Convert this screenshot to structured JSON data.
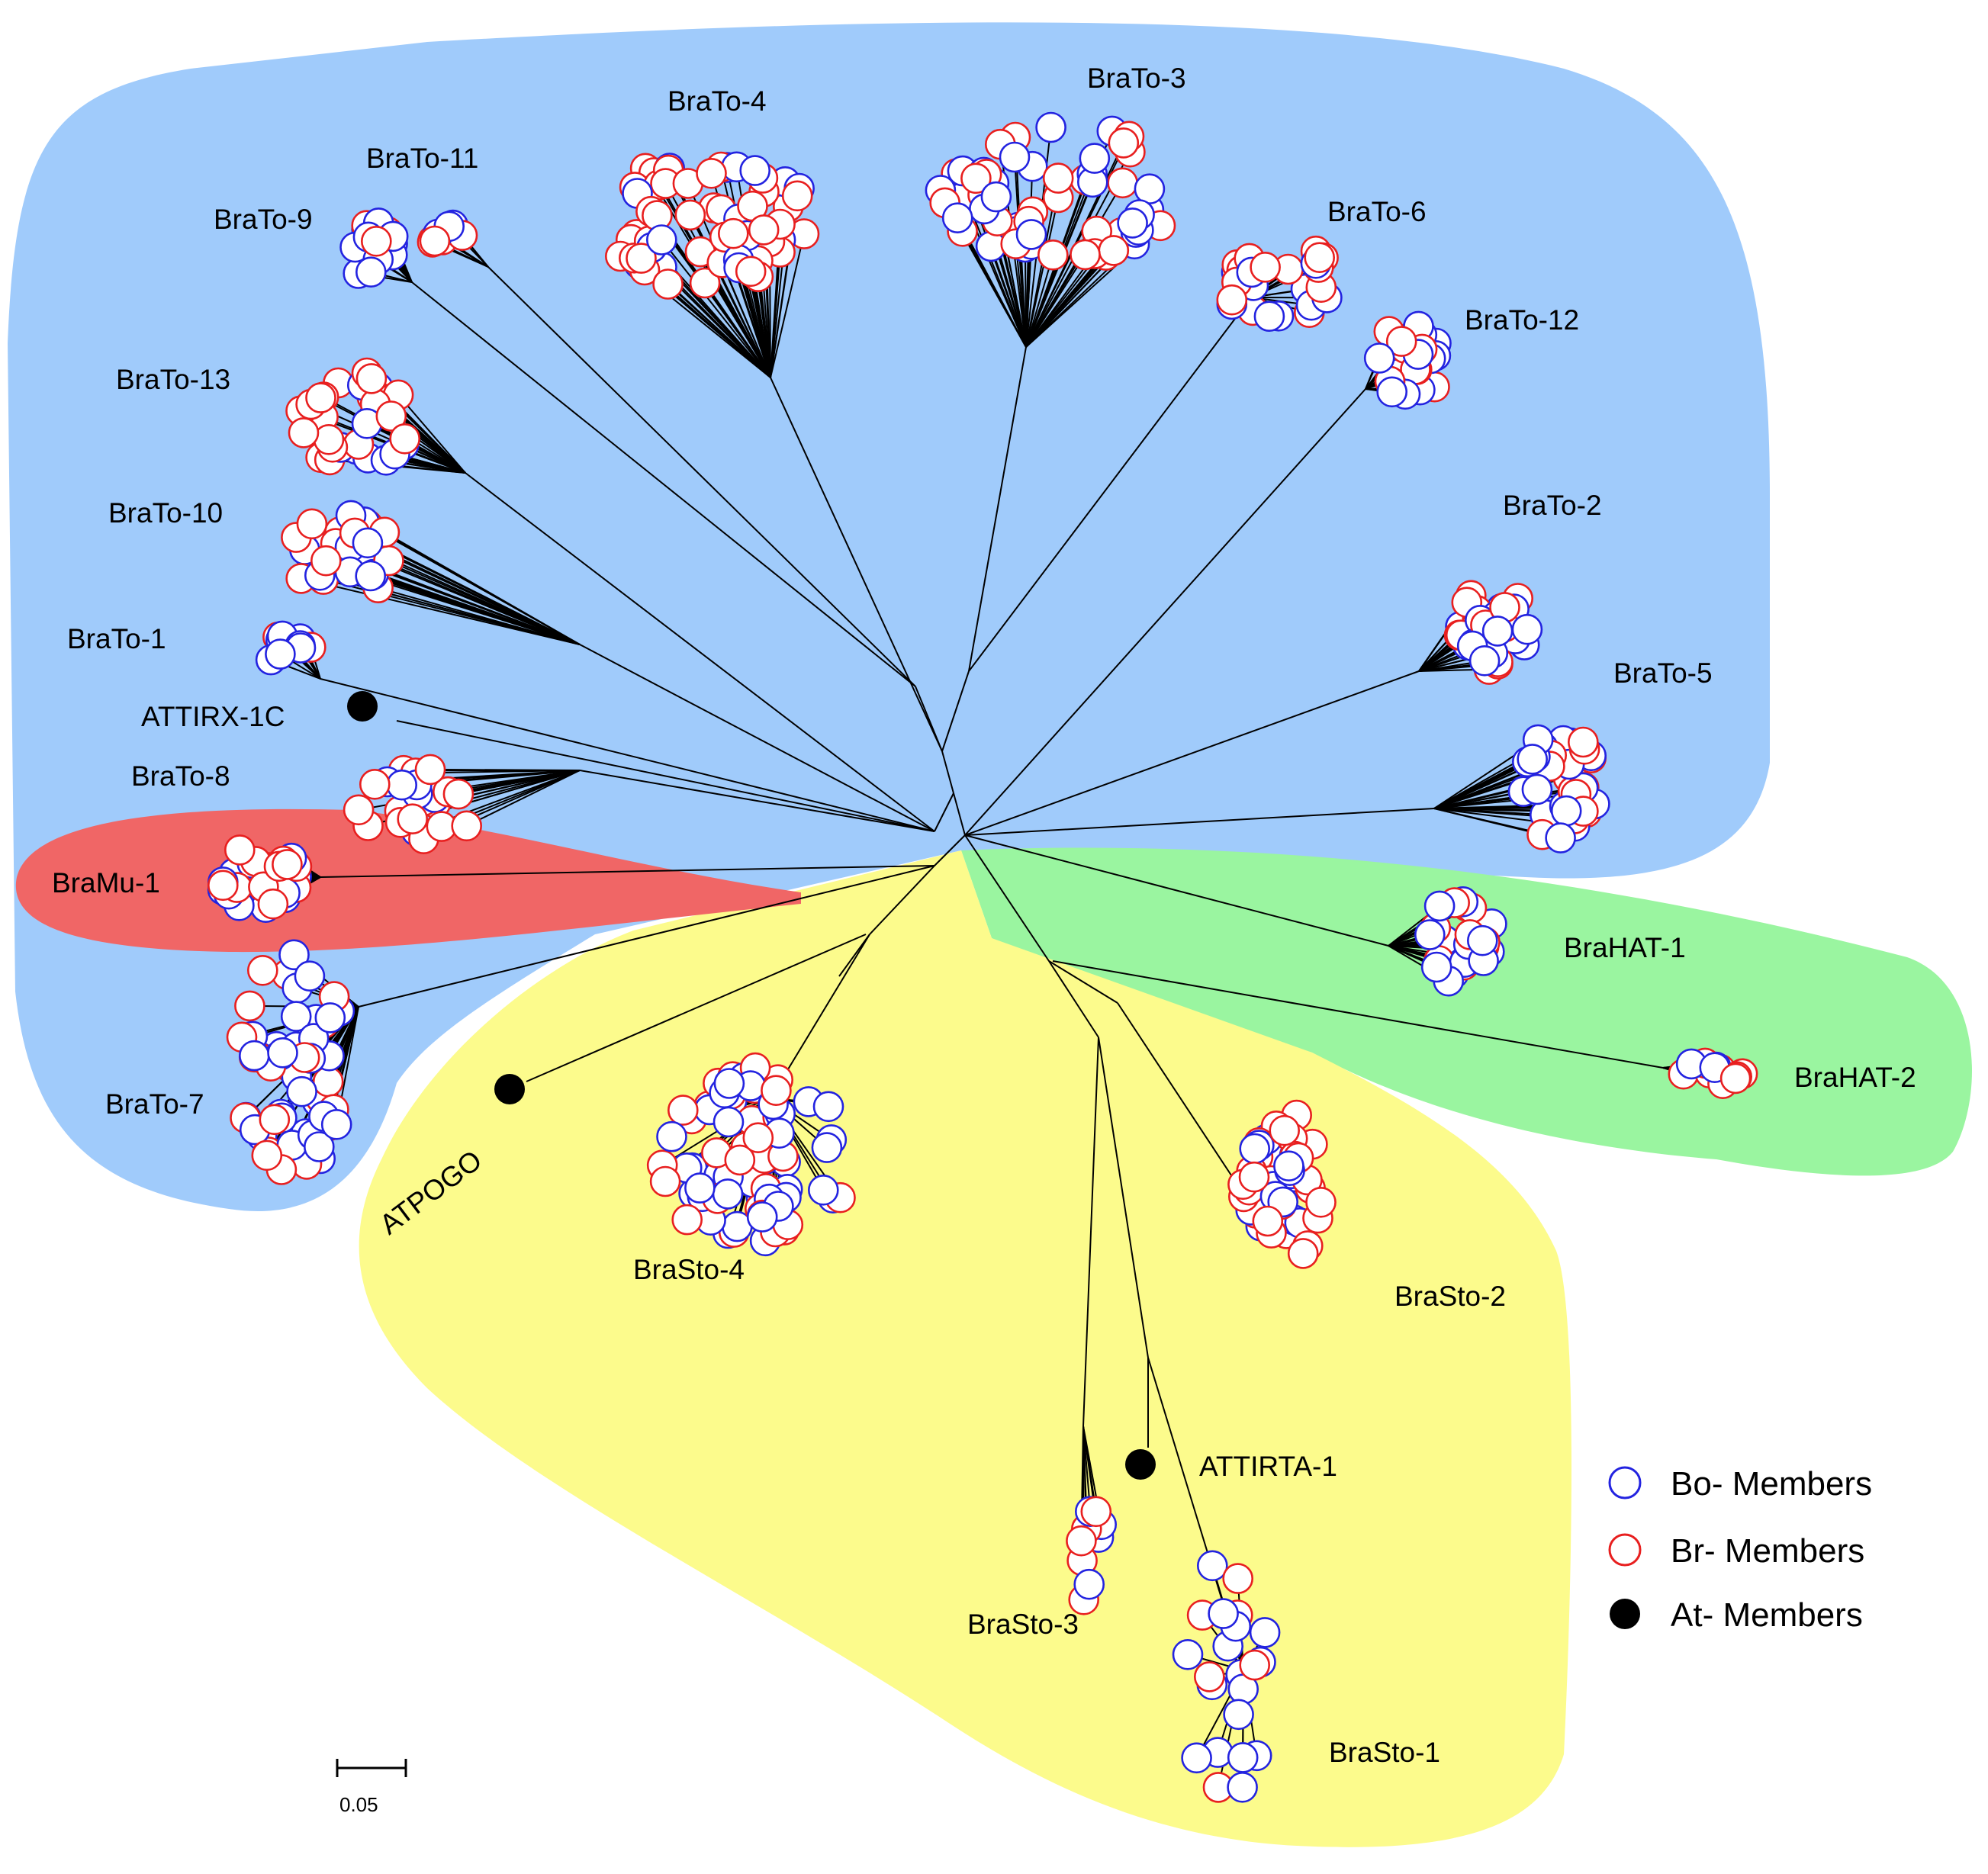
{
  "colors": {
    "bo": "#2323e0",
    "br": "#e81f1f",
    "at": "#000000",
    "group_blue": "#a0cbfb",
    "group_red": "#f06666",
    "group_green": "#9af5a0",
    "group_yellow": "#fcfb8c"
  },
  "clade_labels": {
    "brato_1": "BraTo-1",
    "brato_2": "BraTo-2",
    "brato_3": "BraTo-3",
    "brato_4": "BraTo-4",
    "brato_5": "BraTo-5",
    "brato_6": "BraTo-6",
    "brato_7": "BraTo-7",
    "brato_8": "BraTo-8",
    "brato_9": "BraTo-9",
    "brato_10": "BraTo-10",
    "brato_11": "BraTo-11",
    "brato_12": "BraTo-12",
    "brato_13": "BraTo-13",
    "bramu_1": "BraMu-1",
    "brahat_1": "BraHAT-1",
    "brahat_2": "BraHAT-2",
    "brasto_1": "BraSto-1",
    "brasto_2": "BraSto-2",
    "brasto_3": "BraSto-3",
    "brasto_4": "BraSto-4"
  },
  "reference_labels": {
    "attirx": "ATTIRX-1C",
    "atpogo": "ATPOGO",
    "attirta": "ATTIRTA-1"
  },
  "legend": {
    "bo": "Bo- Members",
    "br": "Br- Members",
    "at": "At- Members"
  },
  "scale_bar": {
    "label": "0.05"
  }
}
